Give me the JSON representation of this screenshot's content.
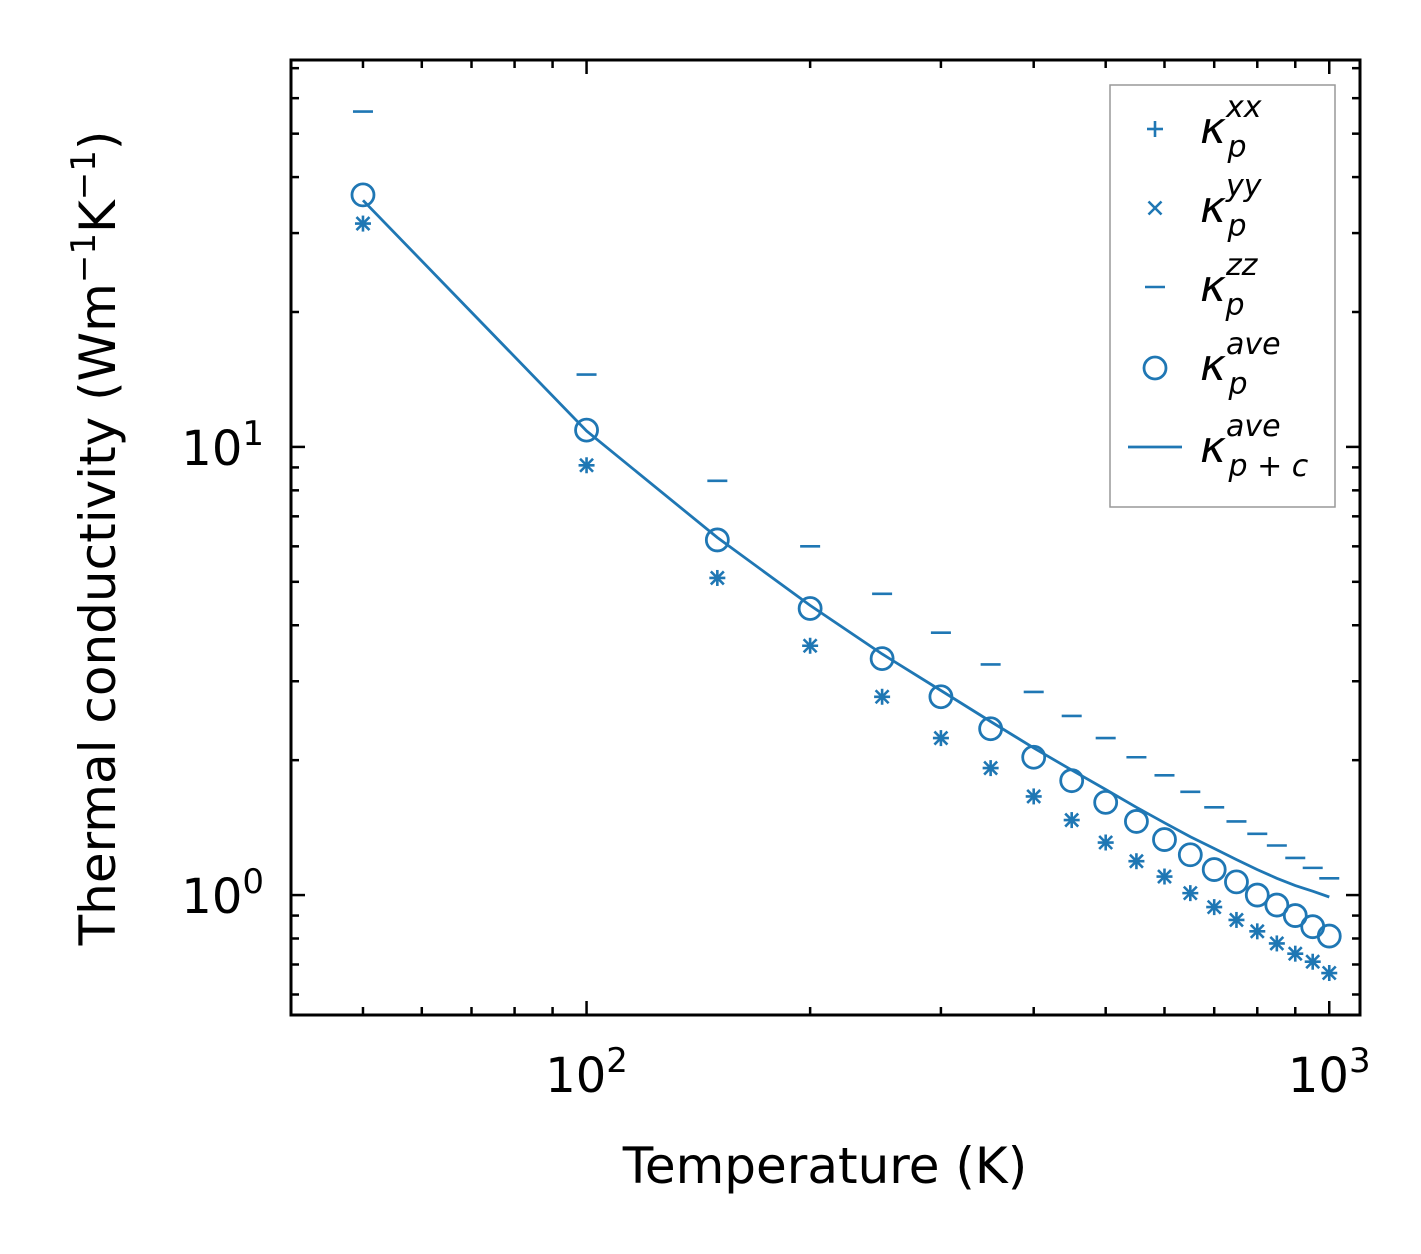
{
  "chart_data": {
    "type": "scatter",
    "xscale": "log",
    "yscale": "log",
    "xlabel": "Temperature (K)",
    "ylabel": "Thermal conductivity (Wm",
    "ylabel_parts": [
      "Thermal conductivity (Wm",
      "−1",
      "K",
      "−1",
      ")"
    ],
    "xlim": [
      40,
      1100
    ],
    "ylim": [
      0.54,
      73
    ],
    "xticks": [
      {
        "base": "10",
        "exp": "2",
        "value": 100
      },
      {
        "base": "10",
        "exp": "3",
        "value": 1000
      }
    ],
    "yticks": [
      {
        "base": "10",
        "exp": "0",
        "value": 1
      },
      {
        "base": "10",
        "exp": "1",
        "value": 10
      }
    ],
    "legend_position": "top-right",
    "color": "#1f77b4",
    "x": [
      50,
      100,
      150,
      200,
      250,
      300,
      350,
      400,
      450,
      500,
      550,
      600,
      650,
      700,
      750,
      800,
      850,
      900,
      950,
      1000
    ],
    "series": [
      {
        "name": "kappa_p_xx",
        "label_base": "κ",
        "label_sub": "p",
        "label_sup": "xx",
        "marker": "plus",
        "values": [
          31.5,
          9.1,
          5.1,
          3.6,
          2.77,
          2.24,
          1.92,
          1.66,
          1.47,
          1.31,
          1.19,
          1.1,
          1.01,
          0.94,
          0.88,
          0.83,
          0.78,
          0.74,
          0.71,
          0.67
        ]
      },
      {
        "name": "kappa_p_yy",
        "label_base": "κ",
        "label_sub": "p",
        "label_sup": "yy",
        "marker": "x",
        "values": [
          31.5,
          9.1,
          5.1,
          3.6,
          2.77,
          2.24,
          1.92,
          1.66,
          1.47,
          1.31,
          1.19,
          1.1,
          1.01,
          0.94,
          0.88,
          0.83,
          0.78,
          0.74,
          0.71,
          0.67
        ]
      },
      {
        "name": "kappa_p_zz",
        "label_base": "κ",
        "label_sub": "p",
        "label_sup": "zz",
        "marker": "hline",
        "values": [
          56,
          14.5,
          8.4,
          6.0,
          4.7,
          3.85,
          3.27,
          2.84,
          2.51,
          2.24,
          2.03,
          1.85,
          1.7,
          1.57,
          1.46,
          1.37,
          1.29,
          1.21,
          1.15,
          1.09
        ]
      },
      {
        "name": "kappa_p_ave",
        "label_base": "κ",
        "label_sub": "p",
        "label_sup": "ave",
        "marker": "circle",
        "values": [
          36.5,
          10.9,
          6.2,
          4.36,
          3.37,
          2.77,
          2.35,
          2.03,
          1.8,
          1.61,
          1.46,
          1.33,
          1.23,
          1.14,
          1.07,
          1.0,
          0.95,
          0.9,
          0.85,
          0.81
        ]
      },
      {
        "name": "kappa_pc_ave",
        "label_base": "κ",
        "label_sub": "p + c",
        "label_sup": "ave",
        "marker": "line",
        "values": [
          35.5,
          10.85,
          6.28,
          4.43,
          3.45,
          2.86,
          2.44,
          2.13,
          1.9,
          1.72,
          1.57,
          1.45,
          1.35,
          1.27,
          1.2,
          1.14,
          1.09,
          1.05,
          1.02,
          0.99
        ]
      }
    ]
  }
}
